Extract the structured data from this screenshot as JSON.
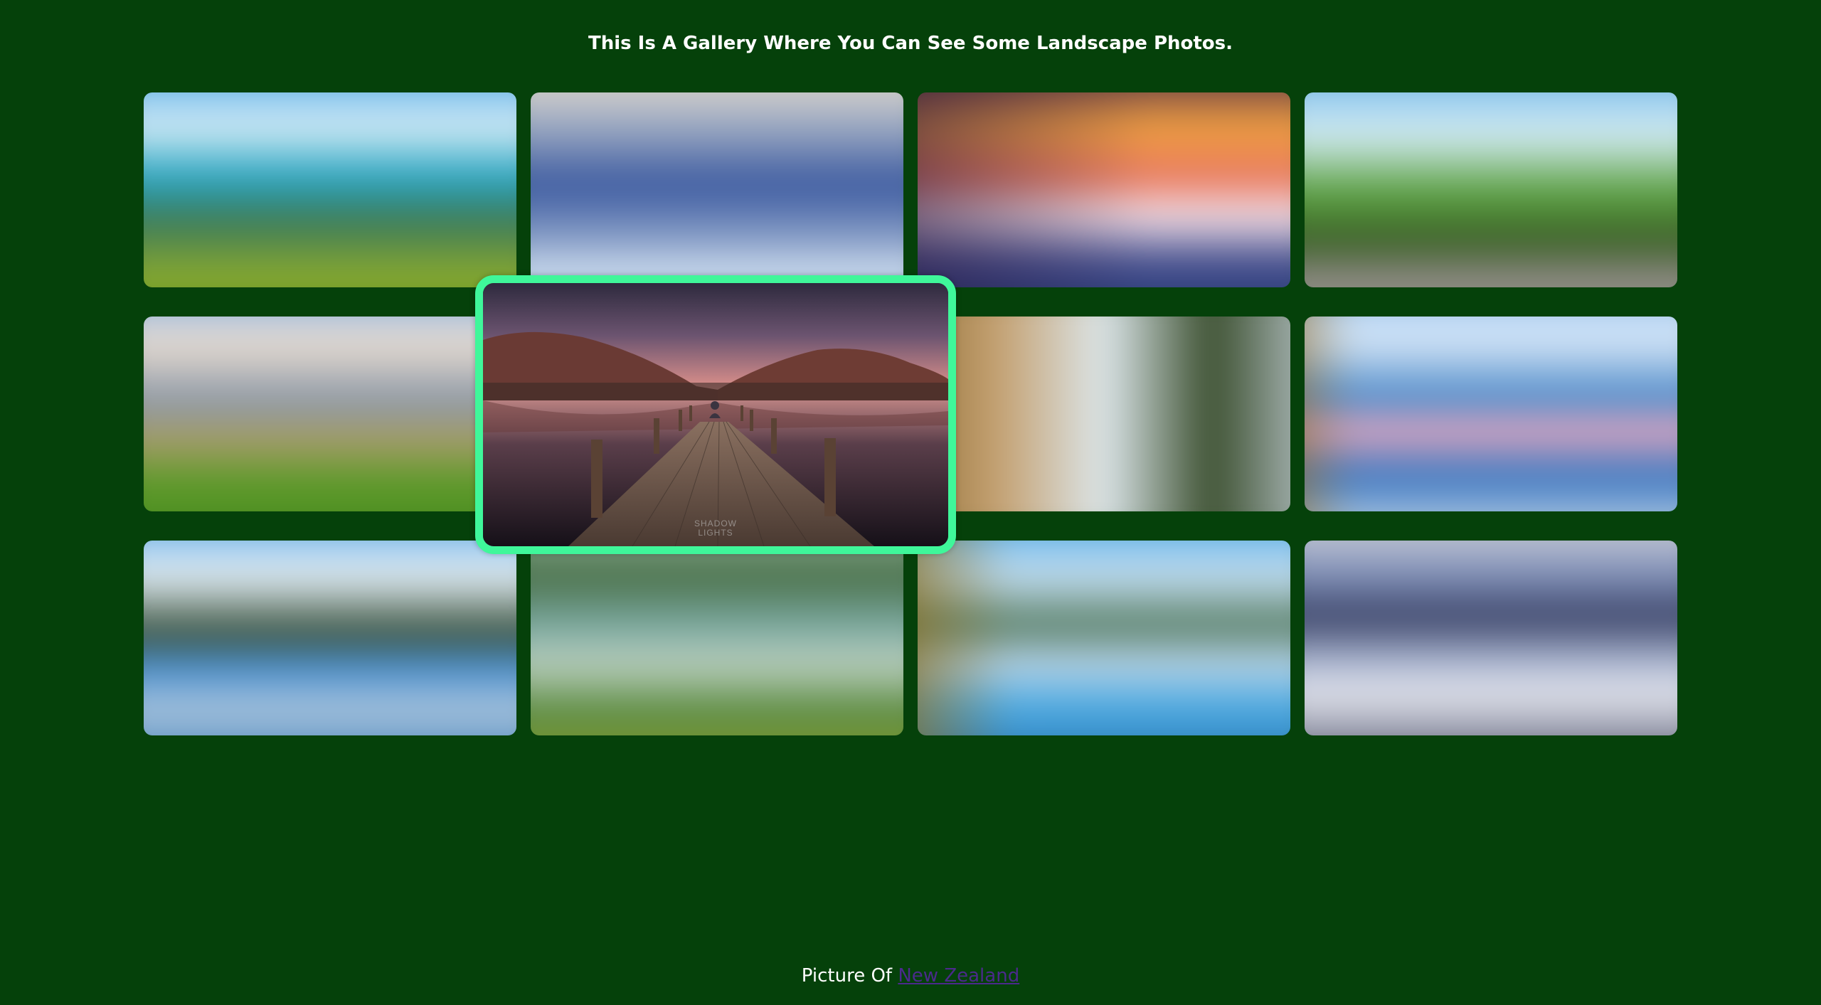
{
  "header": {
    "title": "This Is A Gallery Where You Can See Some Landscape Photos."
  },
  "gallery": {
    "items": [
      {
        "scene": "turquoise-bay-hills"
      },
      {
        "scene": "blue-mountain-lake"
      },
      {
        "scene": "sunset-lake"
      },
      {
        "scene": "green-hills-shore"
      },
      {
        "scene": "meadow-mountains"
      },
      {
        "scene": "lake-jetty-dusk",
        "watermark": "SHADOW LIGHTS"
      },
      {
        "scene": "autumn-reflection"
      },
      {
        "scene": "blue-lake-pink-clouds"
      },
      {
        "scene": "forest-lake-reflection"
      },
      {
        "scene": "valley-green-field"
      },
      {
        "scene": "golden-lake-blue"
      },
      {
        "scene": "misty-mountain-lake"
      }
    ],
    "active_index": 5
  },
  "footer": {
    "prefix": "Picture Of",
    "link_text": "New Zealand"
  },
  "colors": {
    "background": "#05410a",
    "active_border": "#3ff79a",
    "link": "#4b2a8c",
    "text": "#ffffff"
  }
}
